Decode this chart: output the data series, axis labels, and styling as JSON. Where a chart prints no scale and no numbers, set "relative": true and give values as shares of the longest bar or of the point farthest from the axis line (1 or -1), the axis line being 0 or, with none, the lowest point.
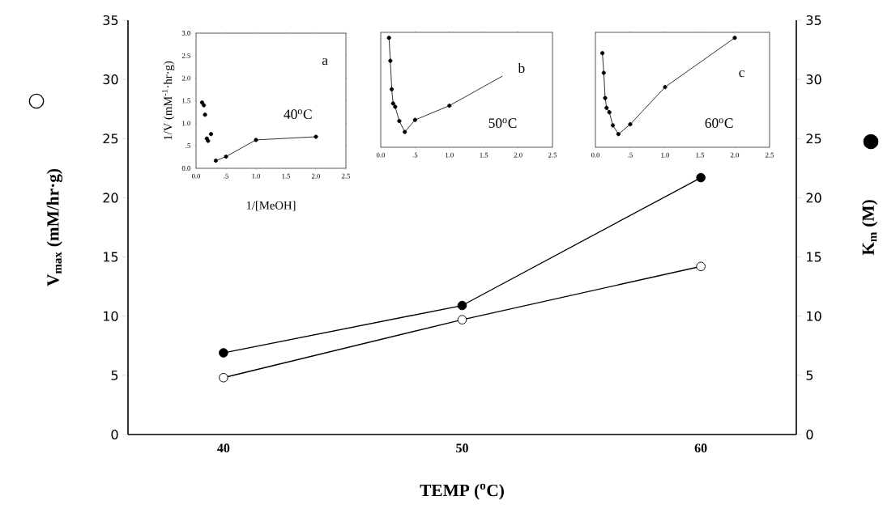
{
  "chart_data": [
    {
      "type": "line",
      "xlabel": "TEMP ($^{o}$C)",
      "ylabel": "V$_{max}$ (mM/hr·g)",
      "y2label": "K$_{m}$ (M)",
      "x": [
        40,
        50,
        60
      ],
      "xlim": [
        36,
        64
      ],
      "xticks": [
        40,
        50,
        60
      ],
      "ylim": [
        0,
        35
      ],
      "yticks": [
        0,
        5,
        10,
        15,
        20,
        25,
        30,
        35
      ],
      "y2lim": [
        0,
        35
      ],
      "y2ticks": [
        0,
        5,
        10,
        15,
        20,
        25,
        30,
        35
      ],
      "marker": "circle",
      "series": [
        {
          "color": "#ffffff",
          "values": [
            4.8,
            9.7,
            14.2
          ]
        },
        {
          "color": "#000000",
          "axis": "y2",
          "values": [
            6.9,
            10.9,
            21.7
          ]
        }
      ]
    },
    {
      "type": "line",
      "xlabel": "1/[MeOH]",
      "ylabel": "1/V (mM$^{-1}$·hr·g)",
      "annotations": [
        "a",
        "40$^{o}$C"
      ],
      "xlim": [
        0,
        2.5
      ],
      "xticks": [
        {
          "value": 0,
          "label": "0.0"
        },
        {
          "value": 0.5,
          "label": ".5"
        },
        {
          "value": 1,
          "label": "1.0"
        },
        {
          "value": 1.5,
          "label": "1.5"
        },
        {
          "value": 2,
          "label": "2.0"
        },
        {
          "value": 2.5,
          "label": "2.5"
        }
      ],
      "ylim": [
        0,
        3
      ],
      "yticks": [
        {
          "value": 0,
          "label": "0.0"
        },
        {
          "value": 0.5,
          "label": ".5"
        },
        {
          "value": 1,
          "label": "1.0"
        },
        {
          "value": 1.5,
          "label": "1.5"
        },
        {
          "value": 2,
          "label": "2.0"
        },
        {
          "value": 2.5,
          "label": "2.5"
        },
        {
          "value": 3,
          "label": "3.0"
        }
      ],
      "marker": "circle",
      "series": [
        {
          "type": "scatter",
          "color": "#000000",
          "x": [
            0.1,
            0.13,
            0.15,
            0.18,
            0.2,
            0.25
          ],
          "values": [
            1.46,
            1.4,
            1.19,
            0.66,
            0.61,
            0.76
          ]
        },
        {
          "color": "#000000",
          "x": [
            0.33,
            0.5,
            1.0,
            2.0
          ],
          "values": [
            0.17,
            0.26,
            0.63,
            0.7
          ]
        }
      ]
    },
    {
      "type": "line",
      "relative": true,
      "tick_labels": "x",
      "annotations": [
        "b",
        "50$^{o}$C"
      ],
      "xlim": [
        0,
        2.5
      ],
      "xticks": [
        {
          "value": 0,
          "label": "0.0"
        },
        {
          "value": 0.5,
          "label": ".5"
        },
        {
          "value": 1,
          "label": "1.0"
        },
        {
          "value": 1.5,
          "label": "1.5"
        },
        {
          "value": 2,
          "label": "2.0"
        },
        {
          "value": 2.5,
          "label": "2.5"
        }
      ],
      "series": [
        {
          "color": "#000000",
          "marker": "none",
          "x": [
            0.12,
            0.14,
            0.16,
            0.18,
            0.21,
            0.27,
            0.35,
            0.5,
            1.0,
            1.77
          ],
          "values": [
            1.0,
            0.79,
            0.53,
            0.4,
            0.37,
            0.24,
            0.14,
            0.25,
            0.38,
            0.65
          ]
        },
        {
          "type": "scatter",
          "color": "#000000",
          "marker": "circle",
          "x": [
            0.12,
            0.14,
            0.16,
            0.18,
            0.21,
            0.27,
            0.35,
            0.5,
            1.0
          ],
          "values": [
            1.0,
            0.79,
            0.53,
            0.4,
            0.37,
            0.24,
            0.14,
            0.25,
            0.38
          ]
        }
      ]
    },
    {
      "type": "line",
      "relative": true,
      "tick_labels": "x",
      "annotations": [
        "c",
        "60$^{o}$C"
      ],
      "xlim": [
        0,
        2.5
      ],
      "xticks": [
        {
          "value": 0,
          "label": "0.0"
        },
        {
          "value": 0.5,
          "label": ".5"
        },
        {
          "value": 1,
          "label": "1.0"
        },
        {
          "value": 1.5,
          "label": "1.5"
        },
        {
          "value": 2,
          "label": "2.0"
        },
        {
          "value": 2.5,
          "label": "2.5"
        }
      ],
      "marker": "circle",
      "series": [
        {
          "color": "#000000",
          "x": [
            0.1,
            0.12,
            0.14,
            0.16,
            0.2,
            0.25,
            0.33,
            0.5,
            1.0,
            2.0
          ],
          "values": [
            0.86,
            0.68,
            0.45,
            0.36,
            0.32,
            0.2,
            0.12,
            0.21,
            0.55,
            1.0
          ]
        }
      ]
    }
  ]
}
